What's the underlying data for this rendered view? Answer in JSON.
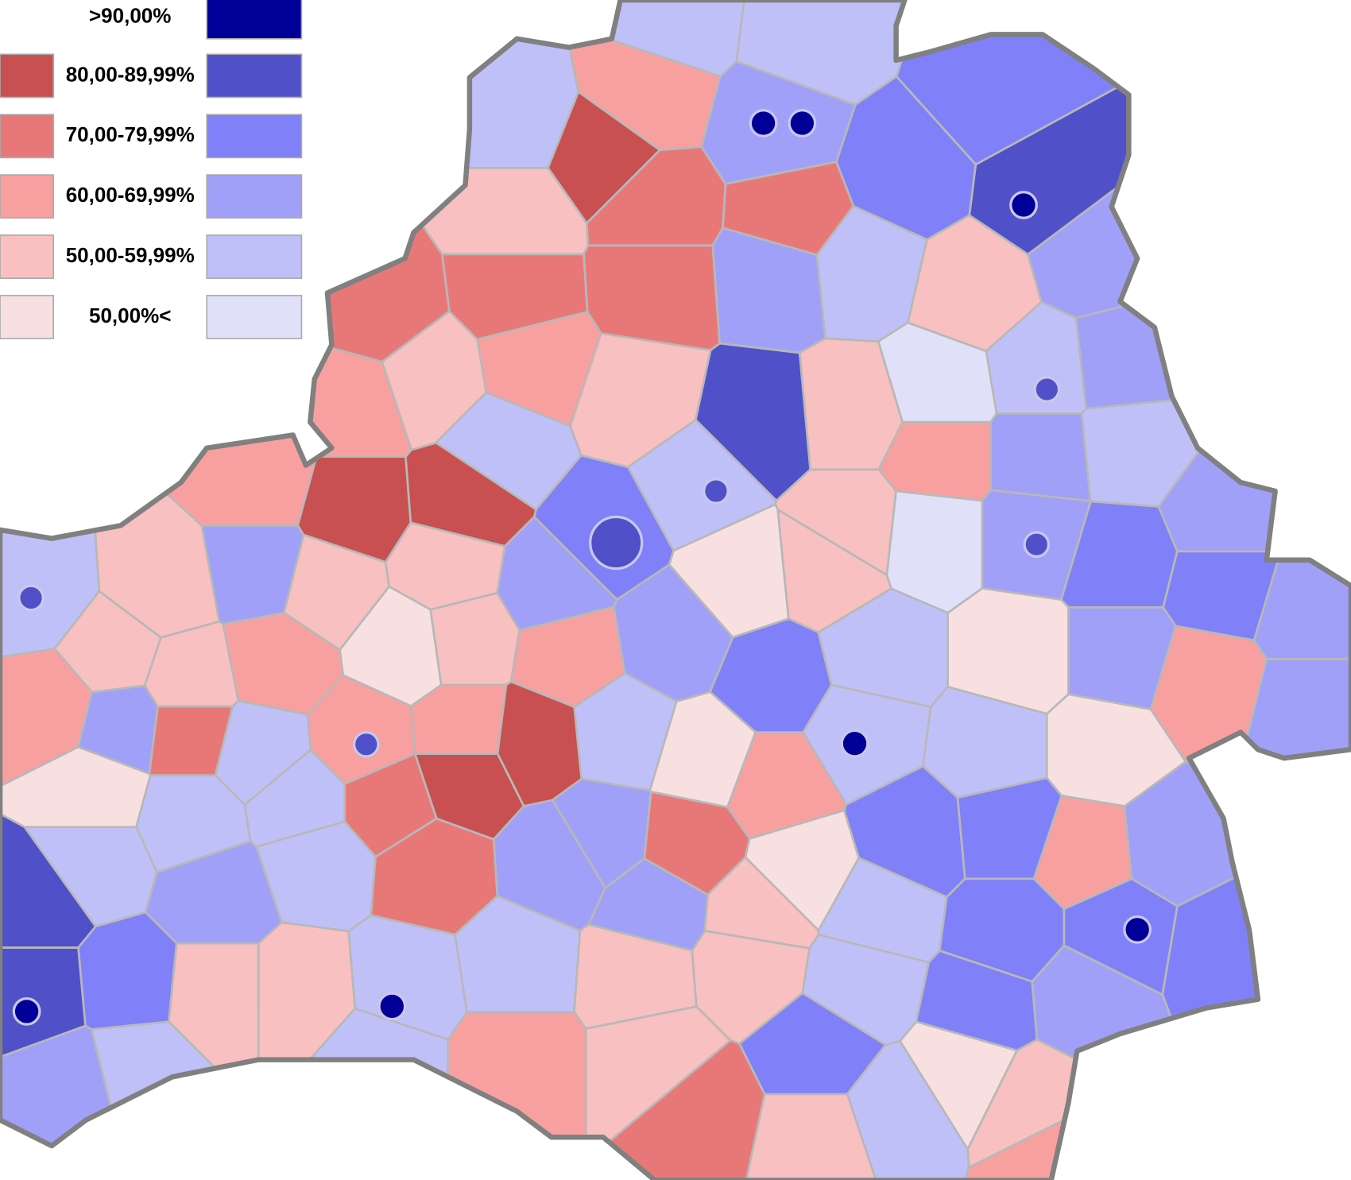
{
  "legend": {
    "items": [
      {
        "label": ">90,00%",
        "blue": "#000099"
      },
      {
        "label": "80,00-89,99%",
        "red": "#c85050",
        "blue": "#5050c8"
      },
      {
        "label": "70,00-79,99%",
        "red": "#e87878",
        "blue": "#8080f8"
      },
      {
        "label": "60,00-69,99%",
        "red": "#f8a0a0",
        "blue": "#a0a0f8"
      },
      {
        "label": "50,00-59,99%",
        "red": "#f8c0c0",
        "blue": "#c0c0f8"
      },
      {
        "label": "50,00%<",
        "red": "#f8e0e0",
        "blue": "#e0e0f8"
      }
    ]
  }
}
